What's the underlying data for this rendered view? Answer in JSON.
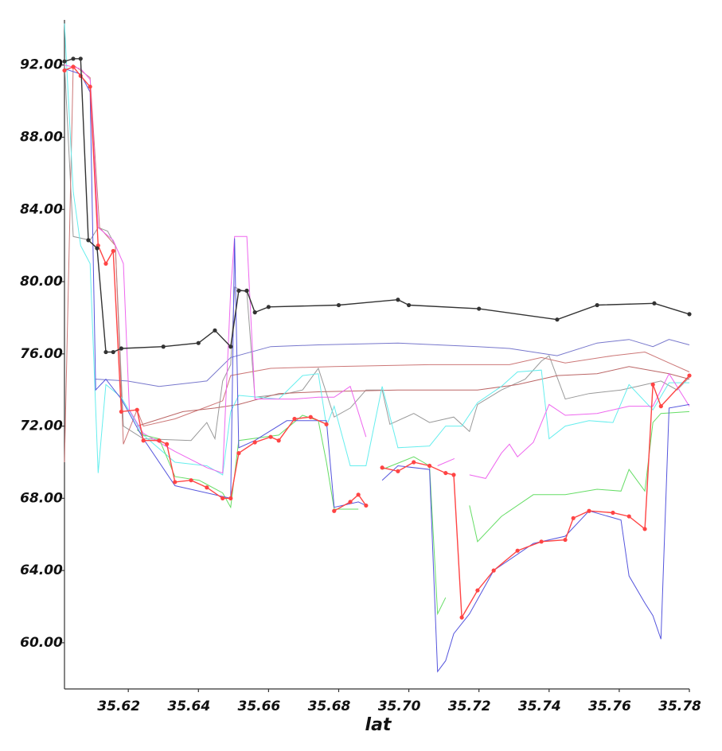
{
  "chart_data": {
    "type": "line",
    "x_label": "lat",
    "xlim": [
      35.6018,
      35.78
    ],
    "ylim": [
      57.44,
      94.5
    ],
    "xticks": [
      35.62,
      35.64,
      35.66,
      35.68,
      {
        "value": 35.7,
        "label": "35.70"
      },
      35.72,
      35.74,
      35.76,
      35.78
    ],
    "yticks": [
      {
        "value": 60,
        "label": "60.00"
      },
      {
        "value": 64,
        "label": "64.00"
      },
      {
        "value": 68,
        "label": "68.00"
      },
      {
        "value": 72,
        "label": "72.00"
      },
      {
        "value": 76,
        "label": "76.00"
      },
      {
        "value": 80,
        "label": "80.00"
      },
      {
        "value": 84,
        "label": "84.00"
      },
      {
        "value": 88,
        "label": "88.00"
      },
      {
        "value": 92,
        "label": "92.00"
      }
    ],
    "series": [
      {
        "color": "#999999",
        "markers": false,
        "x": [
          35.6018,
          35.6043,
          35.6091,
          35.6114,
          35.6141,
          35.6163,
          35.6186,
          35.6243,
          35.6379,
          35.6424,
          35.6447,
          35.6469,
          35.6492,
          35.6503,
          35.6538,
          35.6561,
          35.6652,
          35.6697,
          35.6742,
          35.6787,
          35.6833,
          35.6878,
          35.6924,
          35.6946,
          35.7014,
          35.7059,
          35.7128,
          35.7173,
          35.7196,
          35.7264,
          35.7332,
          35.7378,
          35.74,
          35.7446,
          35.7514,
          35.7605,
          35.7651,
          35.7719,
          35.7765,
          35.78
        ],
        "values": [
          92.1,
          82.5,
          82.3,
          83.0,
          82.8,
          82.0,
          72.0,
          71.3,
          71.2,
          72.2,
          71.3,
          74.5,
          75.4,
          79.7,
          79.4,
          73.6,
          73.8,
          74.0,
          75.2,
          72.5,
          73.0,
          74.0,
          74.0,
          72.1,
          72.7,
          72.2,
          72.5,
          71.7,
          73.2,
          74.0,
          74.6,
          75.6,
          75.9,
          73.5,
          73.8,
          74.0,
          74.2,
          74.5,
          74.0,
          74.7
        ]
      },
      {
        "color": "#7777cc",
        "markers": false,
        "x": [
          35.6107,
          35.6197,
          35.6288,
          35.6424,
          35.6492,
          35.6606,
          35.6742,
          35.6969,
          35.7196,
          35.7287,
          35.7423,
          35.7537,
          35.7628,
          35.7696,
          35.7742,
          35.78
        ],
        "values": [
          74.6,
          74.5,
          74.2,
          74.5,
          75.8,
          76.4,
          76.5,
          76.6,
          76.4,
          76.3,
          75.9,
          76.6,
          76.8,
          76.4,
          76.8,
          76.5
        ]
      },
      {
        "color": "#cc7777",
        "markers": false,
        "x": [
          35.6018,
          35.6043,
          35.6064,
          35.6091,
          35.6118,
          35.6163,
          35.6186,
          35.6225,
          35.6243,
          35.6333,
          35.6469,
          35.6492,
          35.6606,
          35.6787,
          35.7059,
          35.7287,
          35.7378,
          35.7446,
          35.7582,
          35.7673,
          35.7742,
          35.78
        ],
        "values": [
          70.0,
          92.0,
          91.7,
          91.3,
          83.0,
          82.0,
          71.0,
          72.9,
          72.0,
          72.4,
          73.4,
          74.8,
          75.2,
          75.3,
          75.4,
          75.4,
          75.8,
          75.5,
          75.9,
          76.1,
          75.5,
          75.0
        ]
      },
      {
        "color": "#bb6666",
        "markers": false,
        "x": [
          35.6225,
          35.6356,
          35.6447,
          35.6515,
          35.6629,
          35.6742,
          35.6969,
          35.7196,
          35.731,
          35.7423,
          35.7537,
          35.7628,
          35.7742,
          35.78
        ],
        "values": [
          72.0,
          72.8,
          73.0,
          73.2,
          73.8,
          73.9,
          74.0,
          74.0,
          74.3,
          74.8,
          74.9,
          75.3,
          74.9,
          74.6
        ]
      },
      {
        "color": "#66eeee",
        "markers": false,
        "x": [
          35.6018,
          35.6043,
          35.6064,
          35.6091,
          35.6114,
          35.6136,
          35.618,
          35.6243,
          35.6333,
          35.6424,
          35.6469,
          35.6492,
          35.6515,
          35.6629,
          35.6697,
          35.6742,
          35.6765,
          35.6787,
          35.6833,
          35.6878,
          35.6924,
          35.6969,
          35.7059,
          35.7105,
          35.7151,
          35.7196,
          35.7264,
          35.731,
          35.7378,
          35.74,
          35.7446,
          35.7514,
          35.7582,
          35.7628,
          35.7696,
          35.7742,
          35.78
        ],
        "values": [
          94.3,
          85.0,
          82.0,
          81.0,
          69.4,
          74.3,
          73.6,
          71.5,
          70.0,
          69.8,
          69.3,
          72.8,
          73.7,
          73.5,
          74.8,
          74.9,
          72.0,
          73.1,
          69.8,
          69.8,
          74.2,
          70.8,
          70.9,
          72.0,
          72.0,
          73.3,
          74.2,
          75.0,
          75.1,
          71.3,
          72.0,
          72.3,
          72.2,
          74.3,
          72.9,
          74.4,
          74.4
        ]
      },
      {
        "color": "#ee66ee",
        "markers": false,
        "x": [
          35.6018,
          35.6064,
          35.6091,
          35.6114,
          35.6157,
          35.6186,
          35.6203,
          35.6243,
          35.6333,
          35.6424,
          35.6469,
          35.6492,
          35.6503,
          35.6538,
          35.6561,
          35.6606,
          35.6674,
          35.6742,
          35.6787,
          35.6833,
          35.6878,
          35.69,
          35.7082,
          35.713,
          35.715,
          35.7173,
          35.7219,
          35.7264,
          35.7287,
          35.731,
          35.7355,
          35.74,
          35.7446,
          35.7537,
          35.7628,
          35.7696,
          35.7742,
          35.78
        ],
        "values": [
          92.0,
          91.8,
          91.2,
          83.0,
          82.3,
          81.0,
          72.9,
          71.6,
          70.6,
          69.7,
          69.4,
          79.5,
          82.5,
          82.5,
          73.5,
          73.5,
          73.5,
          73.6,
          73.6,
          74.2,
          71.4,
          null,
          69.8,
          70.2,
          null,
          69.3,
          69.1,
          70.5,
          71.0,
          70.3,
          71.1,
          73.2,
          72.6,
          72.7,
          73.1,
          73.1,
          74.9,
          73.1
        ]
      },
      {
        "color": "#66dd66",
        "markers": false,
        "x": [
          35.6225,
          35.6243,
          35.6288,
          35.6333,
          35.6402,
          35.6469,
          35.6492,
          35.6515,
          35.6629,
          35.6697,
          35.6742,
          35.6765,
          35.6787,
          35.6856,
          35.69,
          35.6924,
          35.7014,
          35.7059,
          35.7082,
          35.7105,
          35.713,
          35.7173,
          35.7196,
          35.7264,
          35.7355,
          35.7446,
          35.7537,
          35.7605,
          35.7628,
          35.7673,
          35.7696,
          35.7719,
          35.78
        ],
        "values": [
          71.8,
          71.5,
          71.3,
          69.2,
          69.0,
          68.3,
          67.5,
          71.2,
          71.5,
          72.6,
          72.3,
          70.0,
          67.4,
          67.4,
          null,
          69.6,
          70.3,
          69.8,
          61.6,
          62.5,
          null,
          67.6,
          65.6,
          67.0,
          68.2,
          68.2,
          68.5,
          68.4,
          69.6,
          68.4,
          72.2,
          72.7,
          72.8
        ]
      },
      {
        "color": "#5555dd",
        "markers": false,
        "x": [
          35.6018,
          35.6064,
          35.6091,
          35.6107,
          35.6136,
          35.618,
          35.6243,
          35.6333,
          35.6469,
          35.6492,
          35.6503,
          35.6515,
          35.6561,
          35.6652,
          35.6765,
          35.6787,
          35.6856,
          35.6878,
          35.69,
          35.6924,
          35.6969,
          35.7059,
          35.7082,
          35.7105,
          35.7128,
          35.7173,
          35.7242,
          35.7355,
          35.7446,
          35.7514,
          35.7605,
          35.7628,
          35.7673,
          35.7696,
          35.7719,
          35.7742,
          35.78
        ],
        "values": [
          91.8,
          91.5,
          90.5,
          74.0,
          74.6,
          73.5,
          71.3,
          68.7,
          68.1,
          68.0,
          82.4,
          70.8,
          71.2,
          72.3,
          72.3,
          67.5,
          67.8,
          67.6,
          null,
          69.0,
          69.8,
          69.6,
          58.4,
          59.0,
          60.5,
          61.6,
          64.0,
          65.5,
          65.9,
          67.3,
          66.8,
          63.7,
          62.2,
          61.5,
          60.2,
          73.0,
          73.2
        ]
      },
      {
        "color": "#ff4444",
        "markers": true,
        "x": [
          35.6018,
          35.6043,
          35.6064,
          35.6091,
          35.6114,
          35.6136,
          35.6157,
          35.618,
          35.6225,
          35.6243,
          35.6288,
          35.631,
          35.6333,
          35.6379,
          35.6424,
          35.6469,
          35.6492,
          35.6515,
          35.6561,
          35.6606,
          35.6629,
          35.6674,
          35.672,
          35.6765,
          35.678,
          35.6787,
          35.6833,
          35.6856,
          35.6878,
          35.69,
          35.6924,
          35.6969,
          35.7014,
          35.7059,
          35.7105,
          35.7128,
          35.7151,
          35.7196,
          35.7242,
          35.731,
          35.7378,
          35.7446,
          35.7469,
          35.7514,
          35.7582,
          35.7628,
          35.7673,
          35.7696,
          35.7719,
          35.78
        ],
        "values": [
          91.7,
          91.9,
          91.4,
          90.8,
          82.0,
          81.0,
          81.7,
          72.8,
          72.9,
          71.2,
          71.2,
          71.0,
          68.9,
          69.0,
          68.6,
          68.0,
          68.0,
          70.5,
          71.1,
          71.4,
          71.2,
          72.4,
          72.5,
          72.1,
          null,
          67.3,
          67.8,
          68.2,
          67.6,
          null,
          69.7,
          69.5,
          70.0,
          69.8,
          69.4,
          69.3,
          61.4,
          62.9,
          64.0,
          65.1,
          65.6,
          65.7,
          66.9,
          67.3,
          67.2,
          67.0,
          66.3,
          74.3,
          73.1,
          74.8
        ]
      },
      {
        "color": "#333333",
        "markers": true,
        "x": [
          35.6018,
          35.6043,
          35.6064,
          35.6086,
          35.6111,
          35.6136,
          35.6157,
          35.618,
          35.63,
          35.64,
          35.6447,
          35.6492,
          35.6515,
          35.6538,
          35.6561,
          35.66,
          35.68,
          35.6969,
          35.7,
          35.72,
          35.7423,
          35.7537,
          35.77,
          35.78
        ],
        "values": [
          92.2,
          92.35,
          92.35,
          82.3,
          81.85,
          76.1,
          76.1,
          76.3,
          76.4,
          76.6,
          77.3,
          76.4,
          79.5,
          79.5,
          78.3,
          78.6,
          78.7,
          79.0,
          78.7,
          78.5,
          77.9,
          78.7,
          78.8,
          78.2
        ]
      }
    ]
  }
}
